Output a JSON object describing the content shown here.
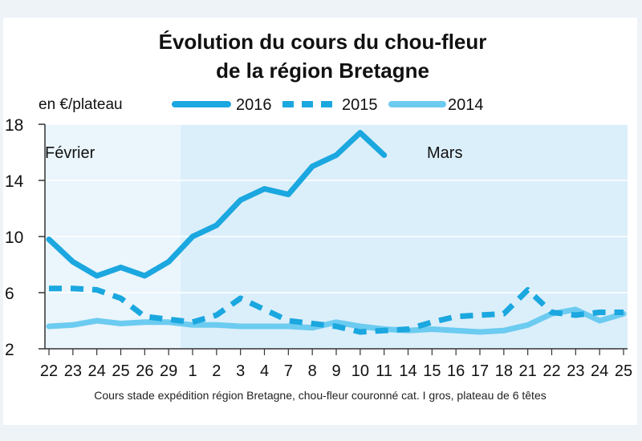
{
  "chart_data": {
    "type": "line",
    "title": "Évolution du cours du chou-fleur",
    "subtitle": "de la région Bretagne",
    "ylabel": "en €/plateau",
    "ylim": [
      2,
      18
    ],
    "yticks": [
      2,
      6,
      10,
      14,
      18
    ],
    "months": [
      "Février",
      "Mars"
    ],
    "categories": [
      "22",
      "23",
      "24",
      "25",
      "26",
      "29",
      "1",
      "2",
      "3",
      "4",
      "7",
      "8",
      "9",
      "10",
      "11",
      "14",
      "15",
      "16",
      "17",
      "18",
      "21",
      "22",
      "23",
      "24",
      "25"
    ],
    "series": [
      {
        "name": "2016",
        "color": "#1ba7df",
        "style": "solid",
        "values": [
          9.8,
          8.2,
          7.2,
          7.8,
          7.2,
          8.2,
          10.0,
          10.8,
          12.6,
          13.4,
          13.0,
          15.0,
          15.8,
          17.4,
          15.8,
          null,
          null,
          null,
          null,
          null,
          null,
          null,
          null,
          null,
          null
        ]
      },
      {
        "name": "2015",
        "color": "#1ba7df",
        "style": "dashed",
        "values": [
          6.3,
          6.3,
          6.2,
          5.6,
          4.3,
          4.1,
          3.9,
          4.4,
          5.6,
          4.8,
          4.0,
          3.8,
          3.6,
          3.2,
          3.3,
          3.4,
          3.9,
          4.3,
          4.4,
          4.5,
          6.2,
          4.6,
          4.4,
          4.6,
          4.6
        ]
      },
      {
        "name": "2014",
        "color": "#6ccbf0",
        "style": "solid",
        "values": [
          3.6,
          3.7,
          4.0,
          3.8,
          3.9,
          3.9,
          3.7,
          3.7,
          3.6,
          3.6,
          3.6,
          3.5,
          3.9,
          3.6,
          3.4,
          3.3,
          3.4,
          3.3,
          3.2,
          3.3,
          3.7,
          4.5,
          4.8,
          4.0,
          4.5
        ]
      }
    ],
    "caption": "Cours stade expédition région Bretagne, chou-fleur couronné cat. I gros, plateau de 6 têtes"
  }
}
